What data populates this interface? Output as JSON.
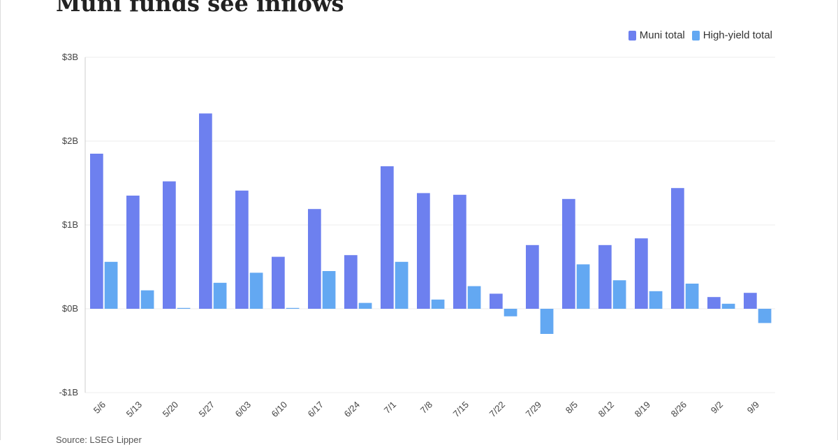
{
  "title": "Muni funds see inflows",
  "source": "Source: LSEG Lipper",
  "colors": {
    "muni": "#6d80ef",
    "high_yield": "#63a8f2",
    "grid": "#ececec",
    "axis": "#cccccc"
  },
  "chart_data": {
    "type": "bar",
    "title": "Muni funds see inflows",
    "xlabel": "",
    "ylabel": "",
    "categories": [
      "5/6",
      "5/13",
      "5/20",
      "5/27",
      "6/03",
      "6/10",
      "6/17",
      "6/24",
      "7/1",
      "7/8",
      "7/15",
      "7/22",
      "7/29",
      "8/5",
      "8/12",
      "8/19",
      "8/26",
      "9/2",
      "9/9"
    ],
    "series": [
      {
        "name": "Muni total",
        "values": [
          1.85,
          1.35,
          1.52,
          2.33,
          1.41,
          0.62,
          1.19,
          0.64,
          1.7,
          1.38,
          1.36,
          0.18,
          0.76,
          1.31,
          0.76,
          0.84,
          1.44,
          0.14,
          0.19
        ]
      },
      {
        "name": "High-yield total",
        "values": [
          0.56,
          0.22,
          0.01,
          0.31,
          0.43,
          0.01,
          0.45,
          0.07,
          0.56,
          0.11,
          0.27,
          -0.09,
          -0.3,
          0.53,
          0.34,
          0.21,
          0.3,
          0.06,
          -0.17
        ]
      }
    ],
    "ylim": [
      -1,
      3
    ],
    "y_ticks": [
      {
        "value": 3,
        "label": "$3B"
      },
      {
        "value": 2,
        "label": "$2B"
      },
      {
        "value": 1,
        "label": "$1B"
      },
      {
        "value": 0,
        "label": "$0B"
      },
      {
        "value": -1,
        "label": "-$1B"
      }
    ],
    "grid": true,
    "legend": "top-right"
  }
}
